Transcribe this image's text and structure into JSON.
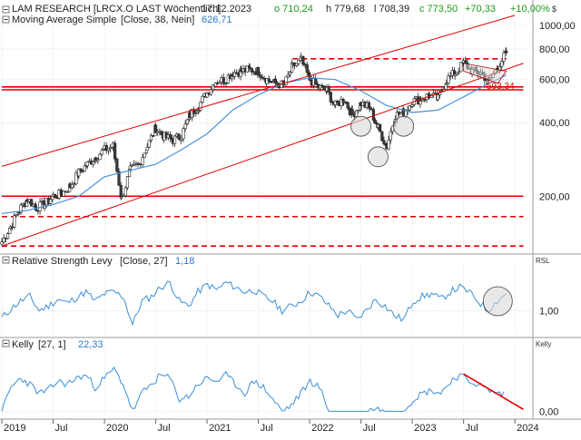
{
  "header": {
    "security": "LAM RESEARCH [LRCX.O LAST Wöchentlich]",
    "date": "17.12.2023",
    "open": "o 710,24",
    "high": "h 779,68",
    "low": "l 708,39",
    "close": "c 773,50",
    "change": "+70,33",
    "change_pct": "+10,00%",
    "currency_label": "$"
  },
  "indicators": {
    "ma_label": "Moving Average Simple",
    "ma_params": "[Close, 38, Nein]",
    "ma_value": "626,71",
    "rsl_label": "Relative Strength Levy",
    "rsl_params": "[Close, 27]",
    "rsl_value": "1,18",
    "rsl_axis": "RSL",
    "kelly_label": "Kelly",
    "kelly_params": "[27, 1]",
    "kelly_value": "22,33",
    "kelly_axis": "Kelly",
    "level_label": "593,34"
  },
  "colors": {
    "price_up": "#ffffff",
    "price_down": "#3a3a3a",
    "ma": "#4a90d9",
    "indicator_line": "#3a8fd8",
    "trendline": "#e00000",
    "grid": "#c8c8c8",
    "positive": "#1a9c1a",
    "negative": "#cc0000"
  },
  "chart_data": [
    {
      "type": "candlestick",
      "title": "LAM RESEARCH [LRCX.O LAST Wöchentlich]",
      "y_scale": "log",
      "ylim": [
        120,
        1000
      ],
      "yticks": [
        "1000,00",
        "800,00",
        "600,00",
        "400,00",
        "200,00"
      ],
      "ytick_values": [
        1000,
        800,
        600,
        400,
        200
      ],
      "x_ticks": [
        "2019",
        "Jul",
        "2020",
        "Jul",
        "2021",
        "Jul",
        "2022",
        "Jul",
        "2023",
        "Jul",
        "2024"
      ],
      "x_tick_dates": [
        "2019-01",
        "2019-07",
        "2020-01",
        "2020-07",
        "2021-01",
        "2021-07",
        "2022-01",
        "2022-07",
        "2023-01",
        "2023-07",
        "2024-01"
      ],
      "grid": true,
      "price_path": [
        [
          "2019-01",
          130
        ],
        [
          "2019-02",
          150
        ],
        [
          "2019-03",
          175
        ],
        [
          "2019-04",
          195
        ],
        [
          "2019-05",
          180
        ],
        [
          "2019-06",
          185
        ],
        [
          "2019-07",
          200
        ],
        [
          "2019-08",
          205
        ],
        [
          "2019-09",
          220
        ],
        [
          "2019-10",
          250
        ],
        [
          "2019-11",
          270
        ],
        [
          "2019-12",
          290
        ],
        [
          "2020-01",
          310
        ],
        [
          "2020-02",
          320
        ],
        [
          "2020-03",
          195
        ],
        [
          "2020-04",
          255
        ],
        [
          "2020-05",
          270
        ],
        [
          "2020-06",
          320
        ],
        [
          "2020-07",
          380
        ],
        [
          "2020-08",
          350
        ],
        [
          "2020-09",
          340
        ],
        [
          "2020-10",
          355
        ],
        [
          "2020-11",
          430
        ],
        [
          "2020-12",
          470
        ],
        [
          "2021-01",
          530
        ],
        [
          "2021-02",
          590
        ],
        [
          "2021-03",
          600
        ],
        [
          "2021-04",
          640
        ],
        [
          "2021-05",
          650
        ],
        [
          "2021-06",
          660
        ],
        [
          "2021-07",
          650
        ],
        [
          "2021-08",
          600
        ],
        [
          "2021-09",
          580
        ],
        [
          "2021-10",
          570
        ],
        [
          "2021-11",
          680
        ],
        [
          "2021-12",
          720
        ],
        [
          "2022-01",
          600
        ],
        [
          "2022-02",
          560
        ],
        [
          "2022-03",
          540
        ],
        [
          "2022-04",
          470
        ],
        [
          "2022-05",
          500
        ],
        [
          "2022-06",
          430
        ],
        [
          "2022-07",
          480
        ],
        [
          "2022-08",
          460
        ],
        [
          "2022-09",
          380
        ],
        [
          "2022-10",
          320
        ],
        [
          "2022-11",
          430
        ],
        [
          "2022-12",
          440
        ],
        [
          "2023-01",
          490
        ],
        [
          "2023-02",
          500
        ],
        [
          "2023-03",
          520
        ],
        [
          "2023-04",
          500
        ],
        [
          "2023-05",
          600
        ],
        [
          "2023-06",
          640
        ],
        [
          "2023-07",
          700
        ],
        [
          "2023-08",
          650
        ],
        [
          "2023-09",
          640
        ],
        [
          "2023-10",
          590
        ],
        [
          "2023-11",
          680
        ],
        [
          "2023-12",
          773.5
        ]
      ],
      "ma_path": [
        [
          "2019-01",
          170
        ],
        [
          "2019-04",
          175
        ],
        [
          "2019-07",
          185
        ],
        [
          "2019-10",
          200
        ],
        [
          "2020-01",
          240
        ],
        [
          "2020-04",
          255
        ],
        [
          "2020-07",
          270
        ],
        [
          "2020-10",
          310
        ],
        [
          "2021-01",
          360
        ],
        [
          "2021-04",
          450
        ],
        [
          "2021-07",
          520
        ],
        [
          "2021-10",
          580
        ],
        [
          "2022-01",
          610
        ],
        [
          "2022-04",
          600
        ],
        [
          "2022-07",
          540
        ],
        [
          "2022-10",
          470
        ],
        [
          "2023-01",
          440
        ],
        [
          "2023-04",
          450
        ],
        [
          "2023-07",
          510
        ],
        [
          "2023-10",
          580
        ],
        [
          "2023-12",
          626.71
        ]
      ],
      "horizontal_levels": [
        {
          "value": 730,
          "style": "dashed",
          "from": "2021-11",
          "to": "2023-12"
        },
        {
          "value": 560,
          "style": "solid",
          "from": "2019-01",
          "to": "2024-02"
        },
        {
          "value": 545,
          "style": "solid",
          "from": "2019-01",
          "to": "2024-02"
        },
        {
          "value": 200,
          "style": "solid",
          "from": "2019-01",
          "to": "2024-02"
        },
        {
          "value": 165,
          "style": "dashed",
          "from": "2019-01",
          "to": "2024-02"
        },
        {
          "value": 125,
          "style": "dashed",
          "from": "2019-01",
          "to": "2024-02"
        }
      ],
      "trendlines": [
        {
          "from": [
            "2019-01",
            265
          ],
          "to": [
            "2024-01",
            1100
          ]
        },
        {
          "from": [
            "2019-01",
            125
          ],
          "to": [
            "2024-02",
            700
          ]
        }
      ],
      "annotations": [
        "593,34"
      ]
    },
    {
      "type": "line",
      "title": "Relative Strength Levy [Close, 27]",
      "ylabel": "RSL",
      "yticks": [
        "1,00"
      ],
      "ylim": [
        0.75,
        1.45
      ],
      "values": [
        0.92,
        1.02,
        1.1,
        1.15,
        1.0,
        1.05,
        1.12,
        1.08,
        1.14,
        1.2,
        1.1,
        1.18,
        1.2,
        1.15,
        0.85,
        1.1,
        1.15,
        1.25,
        1.3,
        1.1,
        1.05,
        1.2,
        1.28,
        1.22,
        1.3,
        1.25,
        1.2,
        1.22,
        1.15,
        1.1,
        1.0,
        1.05,
        1.1,
        1.2,
        1.15,
        1.05,
        0.95,
        1.0,
        0.9,
        1.0,
        1.12,
        1.05,
        0.95,
        0.9,
        1.1,
        1.15,
        1.18,
        1.12,
        1.2,
        1.25,
        1.2,
        1.1,
        1.0,
        1.1,
        1.18
      ]
    },
    {
      "type": "line",
      "title": "Kelly [27, 1]",
      "ylabel": "Kelly",
      "yticks": [
        "0,00"
      ],
      "ylim": [
        -0.1,
        1.0
      ],
      "values": [
        0.0,
        0.4,
        0.55,
        0.45,
        0.3,
        0.35,
        0.5,
        0.45,
        0.55,
        0.6,
        0.4,
        0.55,
        0.7,
        0.45,
        0.0,
        0.3,
        0.45,
        0.6,
        0.55,
        0.2,
        0.25,
        0.45,
        0.55,
        0.5,
        0.6,
        0.45,
        0.3,
        0.5,
        0.4,
        0.2,
        0.0,
        0.1,
        0.3,
        0.5,
        0.4,
        0.0,
        0.0,
        0.0,
        0.0,
        0.0,
        0.05,
        0.0,
        0.0,
        0.0,
        0.2,
        0.3,
        0.35,
        0.3,
        0.5,
        0.6,
        0.5,
        0.45,
        0.35,
        0.3,
        0.28
      ]
    }
  ]
}
